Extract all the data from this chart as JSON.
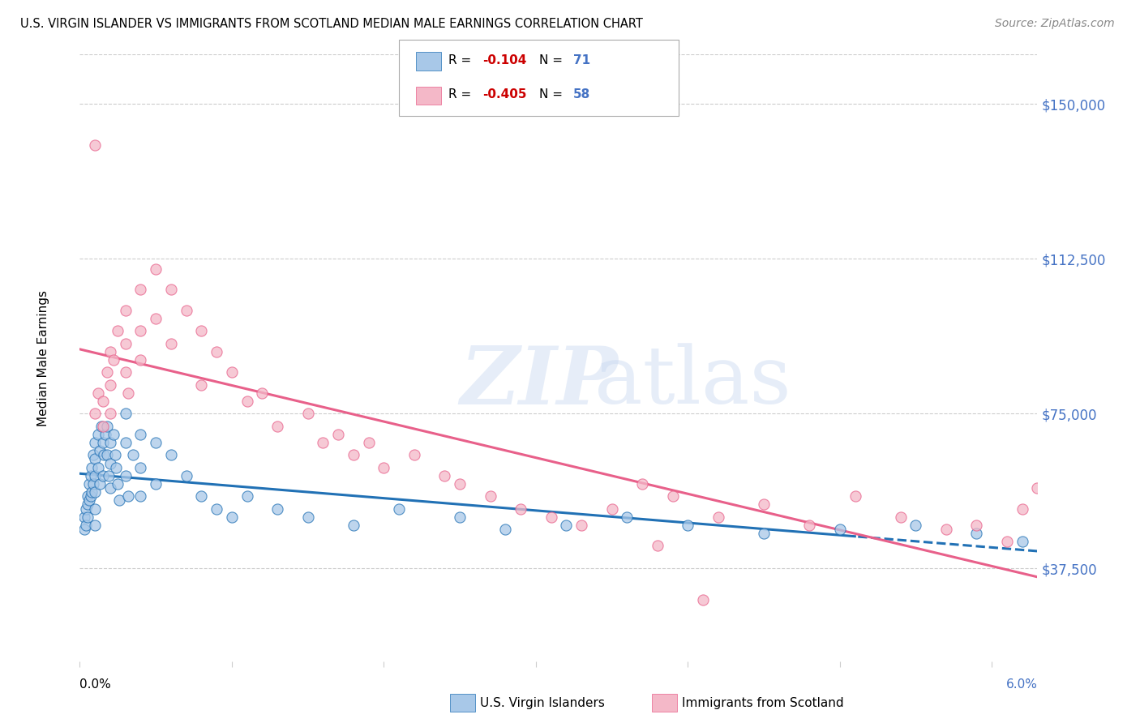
{
  "title": "U.S. VIRGIN ISLANDER VS IMMIGRANTS FROM SCOTLAND MEDIAN MALE EARNINGS CORRELATION CHART",
  "source": "Source: ZipAtlas.com",
  "ylabel": "Median Male Earnings",
  "y_tick_labels": [
    "$37,500",
    "$75,000",
    "$112,500",
    "$150,000"
  ],
  "y_tick_values": [
    37500,
    75000,
    112500,
    150000
  ],
  "ylim": [
    15000,
    162000
  ],
  "xlim": [
    0.0,
    0.063
  ],
  "legend1_r": "-0.104",
  "legend1_n": "71",
  "legend2_r": "-0.405",
  "legend2_n": "58",
  "color_blue": "#a8c8e8",
  "color_pink": "#f4b8c8",
  "color_blue_line": "#2171b5",
  "color_pink_line": "#e8608a",
  "color_axis_label": "#4472C4",
  "blue_scatter_x": [
    0.0003,
    0.0003,
    0.0004,
    0.0004,
    0.0005,
    0.0005,
    0.0005,
    0.0006,
    0.0006,
    0.0007,
    0.0007,
    0.0008,
    0.0008,
    0.0009,
    0.0009,
    0.001,
    0.001,
    0.001,
    0.001,
    0.001,
    0.001,
    0.0012,
    0.0012,
    0.0013,
    0.0013,
    0.0014,
    0.0015,
    0.0015,
    0.0016,
    0.0017,
    0.0018,
    0.0018,
    0.0019,
    0.002,
    0.002,
    0.002,
    0.0022,
    0.0023,
    0.0024,
    0.0025,
    0.0026,
    0.003,
    0.003,
    0.003,
    0.0032,
    0.0035,
    0.004,
    0.004,
    0.004,
    0.005,
    0.005,
    0.006,
    0.007,
    0.008,
    0.009,
    0.01,
    0.011,
    0.013,
    0.015,
    0.018,
    0.021,
    0.025,
    0.028,
    0.032,
    0.036,
    0.04,
    0.045,
    0.05,
    0.055,
    0.059,
    0.062
  ],
  "blue_scatter_y": [
    50000,
    47000,
    52000,
    48000,
    55000,
    53000,
    50000,
    58000,
    54000,
    60000,
    55000,
    62000,
    56000,
    65000,
    58000,
    68000,
    64000,
    60000,
    56000,
    52000,
    48000,
    70000,
    62000,
    66000,
    58000,
    72000,
    68000,
    60000,
    65000,
    70000,
    72000,
    65000,
    60000,
    68000,
    63000,
    57000,
    70000,
    65000,
    62000,
    58000,
    54000,
    75000,
    68000,
    60000,
    55000,
    65000,
    70000,
    62000,
    55000,
    68000,
    58000,
    65000,
    60000,
    55000,
    52000,
    50000,
    55000,
    52000,
    50000,
    48000,
    52000,
    50000,
    47000,
    48000,
    50000,
    48000,
    46000,
    47000,
    48000,
    46000,
    44000
  ],
  "pink_scatter_x": [
    0.001,
    0.001,
    0.0012,
    0.0015,
    0.0015,
    0.0018,
    0.002,
    0.002,
    0.002,
    0.0022,
    0.0025,
    0.003,
    0.003,
    0.003,
    0.0032,
    0.004,
    0.004,
    0.004,
    0.005,
    0.005,
    0.006,
    0.006,
    0.007,
    0.008,
    0.008,
    0.009,
    0.01,
    0.011,
    0.012,
    0.013,
    0.015,
    0.016,
    0.017,
    0.018,
    0.019,
    0.02,
    0.022,
    0.024,
    0.025,
    0.027,
    0.029,
    0.031,
    0.033,
    0.035,
    0.037,
    0.039,
    0.042,
    0.045,
    0.048,
    0.051,
    0.054,
    0.057,
    0.059,
    0.061,
    0.062,
    0.063,
    0.038,
    0.041
  ],
  "pink_scatter_y": [
    140000,
    75000,
    80000,
    72000,
    78000,
    85000,
    90000,
    82000,
    75000,
    88000,
    95000,
    100000,
    92000,
    85000,
    80000,
    105000,
    95000,
    88000,
    110000,
    98000,
    105000,
    92000,
    100000,
    95000,
    82000,
    90000,
    85000,
    78000,
    80000,
    72000,
    75000,
    68000,
    70000,
    65000,
    68000,
    62000,
    65000,
    60000,
    58000,
    55000,
    52000,
    50000,
    48000,
    52000,
    58000,
    55000,
    50000,
    53000,
    48000,
    55000,
    50000,
    47000,
    48000,
    44000,
    52000,
    57000,
    43000,
    30000
  ]
}
